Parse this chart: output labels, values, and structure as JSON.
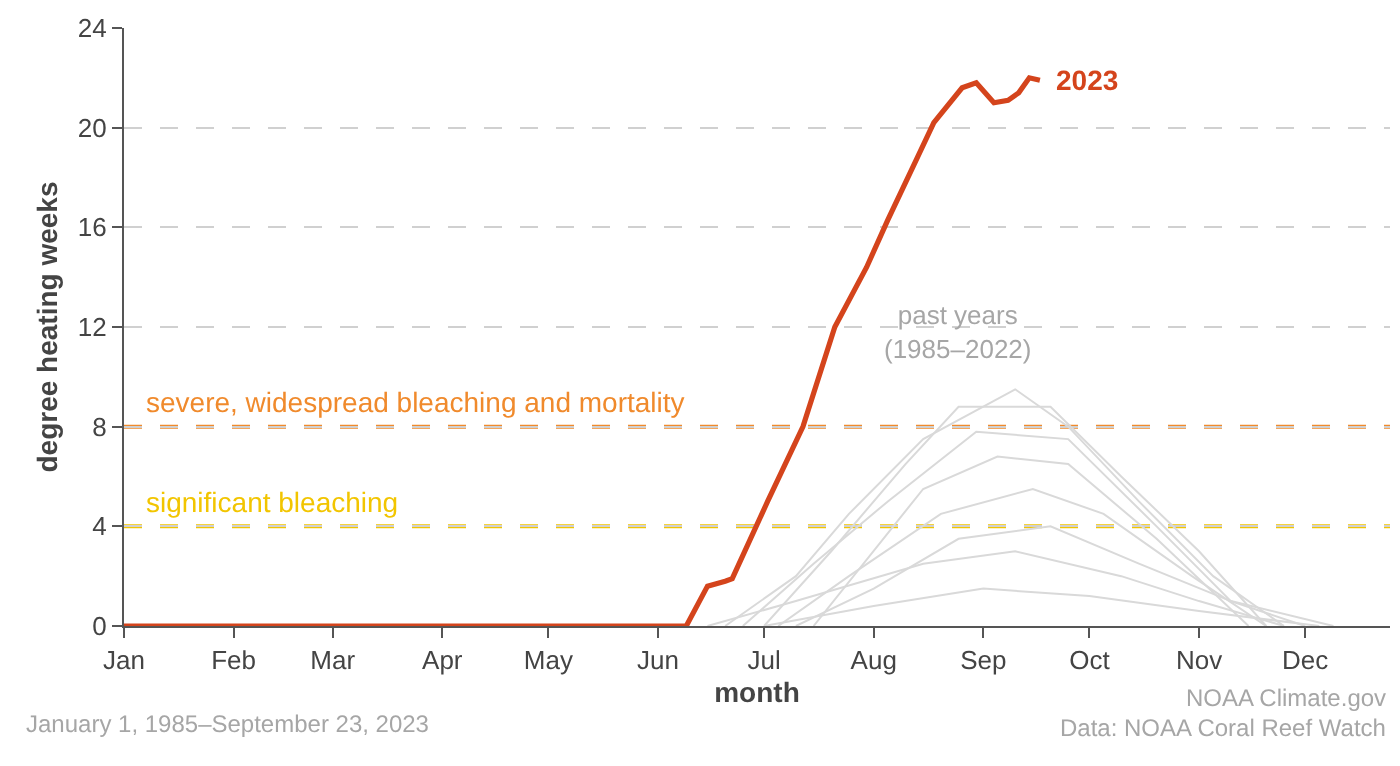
{
  "chart_data": {
    "type": "line",
    "xlabel": "month",
    "ylabel": "degree heating weeks",
    "xlim": [
      "--01-01",
      "--12-25"
    ],
    "xticks": [
      {
        "value": "--01-01",
        "label": "Jan"
      },
      {
        "value": "--02-01",
        "label": "Feb"
      },
      {
        "value": "--03-01",
        "label": "Mar"
      },
      {
        "value": "--04-01",
        "label": "Apr"
      },
      {
        "value": "--05-01",
        "label": "May"
      },
      {
        "value": "--06-01",
        "label": "Jun"
      },
      {
        "value": "--07-01",
        "label": "Jul"
      },
      {
        "value": "--08-01",
        "label": "Aug"
      },
      {
        "value": "--09-01",
        "label": "Sep"
      },
      {
        "value": "--10-01",
        "label": "Oct"
      },
      {
        "value": "--11-01",
        "label": "Nov"
      },
      {
        "value": "--12-01",
        "label": "Dec"
      }
    ],
    "ylim": [
      0,
      24
    ],
    "yticks": [
      0,
      4,
      8,
      12,
      16,
      20,
      24
    ],
    "grid": "y",
    "legend": false,
    "marker": "none",
    "line_style": "solid",
    "series": [
      {
        "color": "#d9d9d9",
        "x": [
          "--06-20",
          "--07-10",
          "--07-25",
          "--08-15",
          "--09-10",
          "--09-25",
          "--10-15",
          "--11-05",
          "--11-25"
        ],
        "values": [
          0,
          2,
          4.5,
          7.5,
          9.5,
          8,
          5,
          2,
          0
        ]
      },
      {
        "color": "#d9d9d9",
        "x": [
          "--07-01",
          "--07-20",
          "--08-10",
          "--08-25",
          "--09-20",
          "--10-10",
          "--11-01",
          "--11-20"
        ],
        "values": [
          0,
          3,
          6.5,
          8.8,
          8.8,
          6,
          3,
          0
        ]
      },
      {
        "color": "#d9d9d9",
        "x": [
          "--06-25",
          "--07-15",
          "--08-05",
          "--08-30",
          "--09-25",
          "--10-20",
          "--11-10",
          "--12-01"
        ],
        "values": [
          0,
          2.5,
          5,
          7.8,
          7.5,
          4,
          1,
          0
        ]
      },
      {
        "color": "#d9d9d9",
        "x": [
          "--07-05",
          "--07-25",
          "--08-20",
          "--09-15",
          "--10-05",
          "--10-30",
          "--11-20"
        ],
        "values": [
          0,
          2,
          4.5,
          5.5,
          4.5,
          2,
          0
        ]
      },
      {
        "color": "#d9d9d9",
        "x": [
          "--07-10",
          "--08-01",
          "--08-25",
          "--09-20",
          "--10-15",
          "--11-10",
          "--12-09"
        ],
        "values": [
          0,
          1.5,
          3.5,
          4,
          2.5,
          1,
          0
        ]
      },
      {
        "color": "#d9d9d9",
        "x": [
          "--06-15",
          "--07-10",
          "--08-15",
          "--09-10",
          "--10-10",
          "--11-01",
          "--11-25"
        ],
        "values": [
          0,
          1,
          2.5,
          3,
          2,
          1,
          0
        ]
      },
      {
        "color": "#d9d9d9",
        "x": [
          "--07-01",
          "--08-01",
          "--09-01",
          "--10-01",
          "--11-01",
          "--12-05"
        ],
        "values": [
          0,
          0.8,
          1.5,
          1.2,
          0.6,
          0
        ]
      },
      {
        "color": "#d9d9d9",
        "x": [
          "--07-15",
          "--08-15",
          "--09-05",
          "--09-25",
          "--10-20",
          "--11-15"
        ],
        "values": [
          0,
          5.5,
          6.8,
          6.5,
          3.5,
          0
        ]
      },
      {
        "name": "2023",
        "color": "#d4441c",
        "x": [
          "--01-01",
          "--06-09",
          "--06-15",
          "--06-20",
          "--06-22",
          "--07-02",
          "--07-12",
          "--07-21",
          "--07-30",
          "--08-05",
          "--08-13",
          "--08-18",
          "--08-26",
          "--08-30",
          "--09-04",
          "--09-08",
          "--09-11",
          "--09-14",
          "--09-17"
        ],
        "values": [
          0,
          0,
          1.6,
          1.8,
          1.9,
          5,
          8,
          12,
          14.4,
          16.3,
          18.7,
          20.2,
          21.6,
          21.8,
          21,
          21.1,
          21.4,
          22,
          21.9
        ]
      }
    ],
    "ref_lines": [
      {
        "axis": "y",
        "value": 8,
        "label": "severe, widespread bleaching and mortality",
        "color": "#f08a2c",
        "line_style": "dashed"
      },
      {
        "axis": "y",
        "value": 4,
        "label": "significant bleaching",
        "color": "#f2c500",
        "line_style": "dashed"
      }
    ],
    "annotations": [
      "past years\n(1985–2022)",
      "January 1, 1985–September 23, 2023",
      "NOAA Climate.gov",
      "Data: NOAA Coral Reef Watch"
    ]
  }
}
